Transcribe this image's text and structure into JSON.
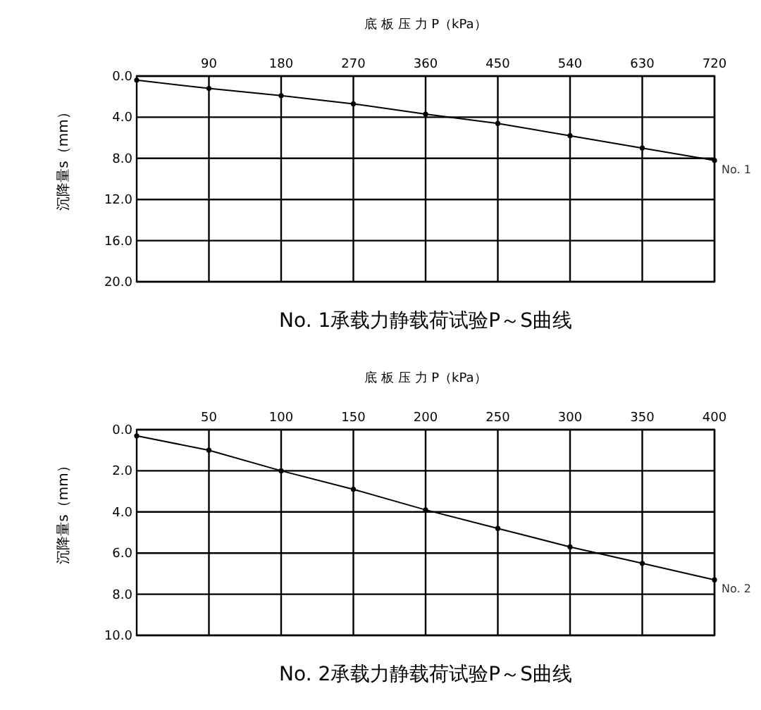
{
  "chart_data": [
    {
      "type": "line",
      "title": "No. 1承载力静载荷试验P～S曲线",
      "xlabel": "底 板 压 力 P（kPa）",
      "ylabel": "沉降量s（mm）",
      "x": [
        0,
        90,
        180,
        270,
        360,
        450,
        540,
        630,
        720
      ],
      "xlim": [
        0,
        720
      ],
      "xticks": [
        90,
        180,
        270,
        360,
        450,
        540,
        630,
        720
      ],
      "ylim": [
        20,
        0
      ],
      "yticks": [
        {
          "value": 0,
          "label": "0.0"
        },
        {
          "value": 4,
          "label": "4.0"
        },
        {
          "value": 8,
          "label": "8.0"
        },
        {
          "value": 12,
          "label": "12.0"
        },
        {
          "value": 16,
          "label": "16.0"
        },
        {
          "value": 20,
          "label": "20.0"
        }
      ],
      "grid": true,
      "marker": "circle",
      "line_style": "solid",
      "series": [
        {
          "name": "No. 1",
          "color": "#000000",
          "values": [
            0.4,
            1.2,
            1.9,
            2.7,
            3.7,
            4.6,
            5.8,
            7.0,
            8.2
          ]
        }
      ]
    },
    {
      "type": "line",
      "title": "No. 2承载力静载荷试验P～S曲线",
      "xlabel": "底 板 压 力 P（kPa）",
      "ylabel": "沉降量s（mm）",
      "x": [
        0,
        50,
        100,
        150,
        200,
        250,
        300,
        350,
        400
      ],
      "xlim": [
        0,
        400
      ],
      "xticks": [
        50,
        100,
        150,
        200,
        250,
        300,
        350,
        400
      ],
      "ylim": [
        10,
        0
      ],
      "yticks": [
        {
          "value": 0,
          "label": "0.0"
        },
        {
          "value": 2,
          "label": "2.0"
        },
        {
          "value": 4,
          "label": "4.0"
        },
        {
          "value": 6,
          "label": "6.0"
        },
        {
          "value": 8,
          "label": "8.0"
        },
        {
          "value": 10,
          "label": "10.0"
        }
      ],
      "grid": true,
      "marker": "circle",
      "line_style": "solid",
      "series": [
        {
          "name": "No. 2",
          "color": "#000000",
          "values": [
            0.3,
            1.0,
            2.0,
            2.9,
            3.9,
            4.8,
            5.7,
            6.5,
            7.3
          ]
        }
      ]
    }
  ]
}
